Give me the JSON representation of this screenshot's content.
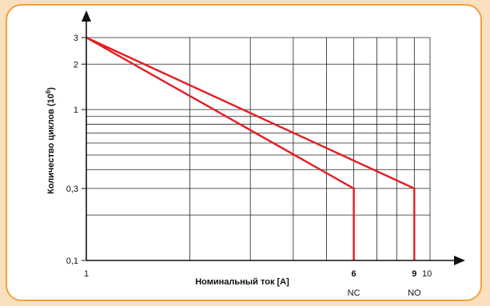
{
  "chart_data": {
    "type": "line",
    "xlabel": "Номинальный ток [A]",
    "ylabel": "Количество циклов (10",
    "ylabel_sup": "6",
    "ylabel_close": ")",
    "xscale": "log",
    "yscale": "log",
    "xlim": [
      1,
      10
    ],
    "ylim": [
      0.1,
      3
    ],
    "grid": true,
    "xticks": [
      {
        "value": 1,
        "label": "1",
        "bold": false
      },
      {
        "value": 6,
        "label": "6",
        "bold": true
      },
      {
        "value": 9,
        "label": "9",
        "bold": true
      },
      {
        "value": 10,
        "label": "10",
        "bold": false
      }
    ],
    "yticks": [
      {
        "value": 0.1,
        "label": "0,1"
      },
      {
        "value": 0.3,
        "label": "0,3"
      },
      {
        "value": 1,
        "label": "1"
      },
      {
        "value": 2,
        "label": "2"
      },
      {
        "value": 3,
        "label": "3"
      }
    ],
    "series_labels": [
      {
        "x": 6,
        "label": "NC"
      },
      {
        "x": 9,
        "label": "NO"
      }
    ],
    "series": [
      {
        "points": [
          [
            1,
            3
          ],
          [
            6,
            0.3
          ],
          [
            6,
            0.1
          ]
        ]
      },
      {
        "points": [
          [
            1,
            3
          ],
          [
            9,
            0.3
          ],
          [
            9,
            0.1
          ]
        ]
      }
    ],
    "colors": {
      "line": "#e31e24",
      "grid": "#222222",
      "frame": "#f2a23c",
      "background": "#fbe0bf"
    }
  }
}
